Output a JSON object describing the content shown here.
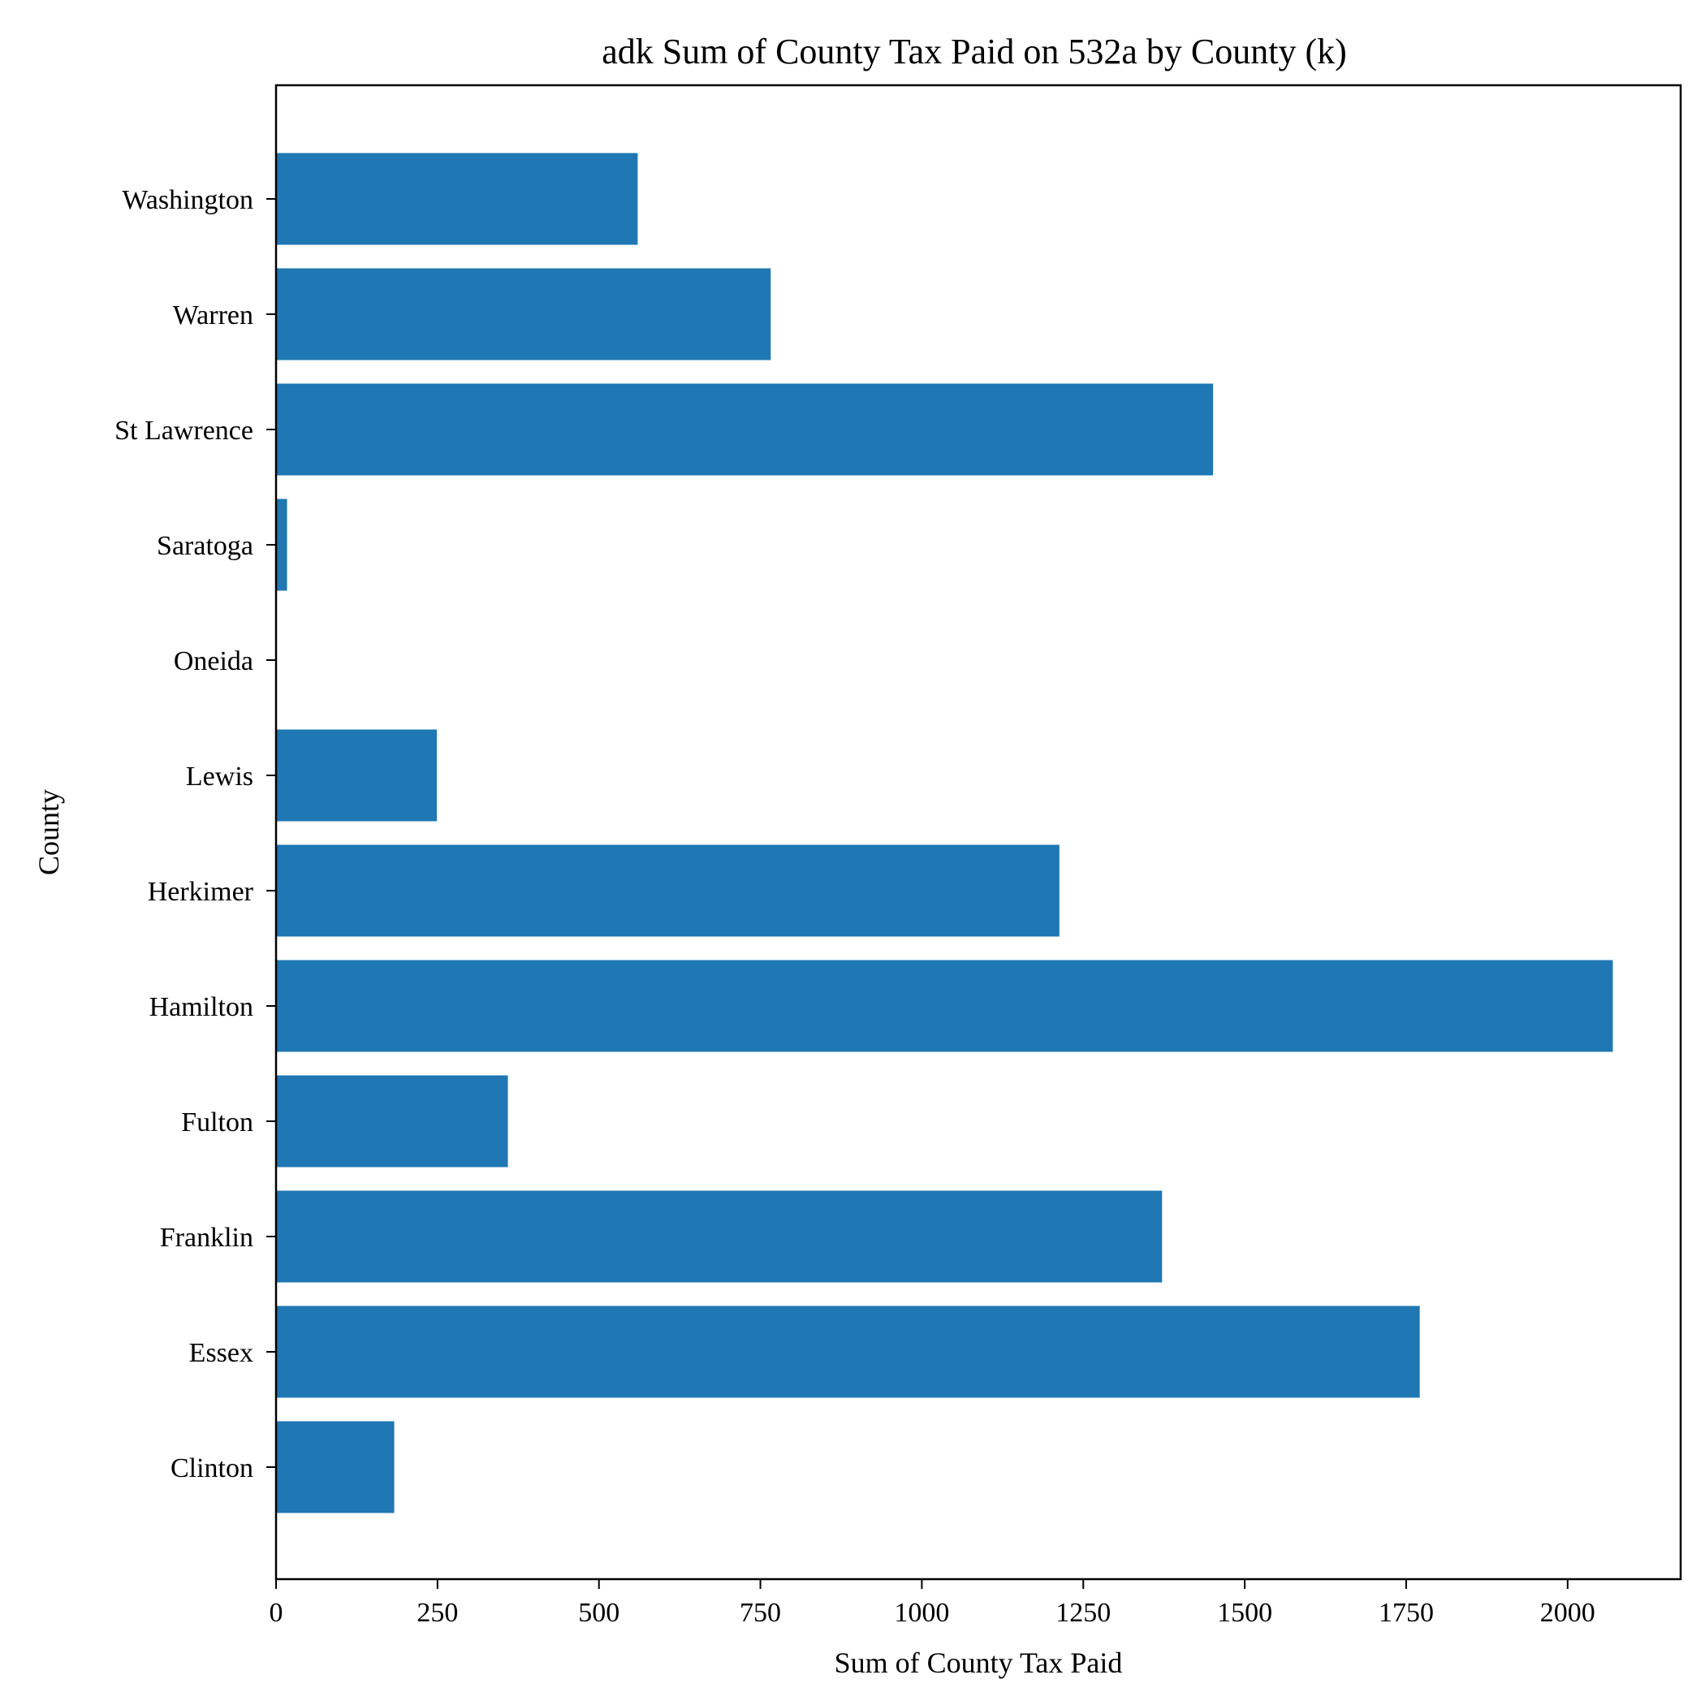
{
  "chart_data": {
    "type": "bar",
    "orientation": "horizontal",
    "title": "adk Sum of County Tax Paid on 532a by County (k)",
    "xlabel": "Sum of County Tax Paid",
    "ylabel": "County",
    "categories": [
      "Clinton",
      "Essex",
      "Franklin",
      "Fulton",
      "Hamilton",
      "Herkimer",
      "Lewis",
      "Oneida",
      "Saratoga",
      "St Lawrence",
      "Warren",
      "Washington"
    ],
    "values": [
      183,
      1771,
      1372,
      359,
      2070,
      1213,
      249,
      0,
      17,
      1451,
      766,
      560
    ],
    "xlim": [
      0,
      2175
    ],
    "xticks": [
      0,
      250,
      500,
      750,
      1000,
      1250,
      1500,
      1750,
      2000
    ],
    "grid": false,
    "color": "#1f77b4"
  }
}
